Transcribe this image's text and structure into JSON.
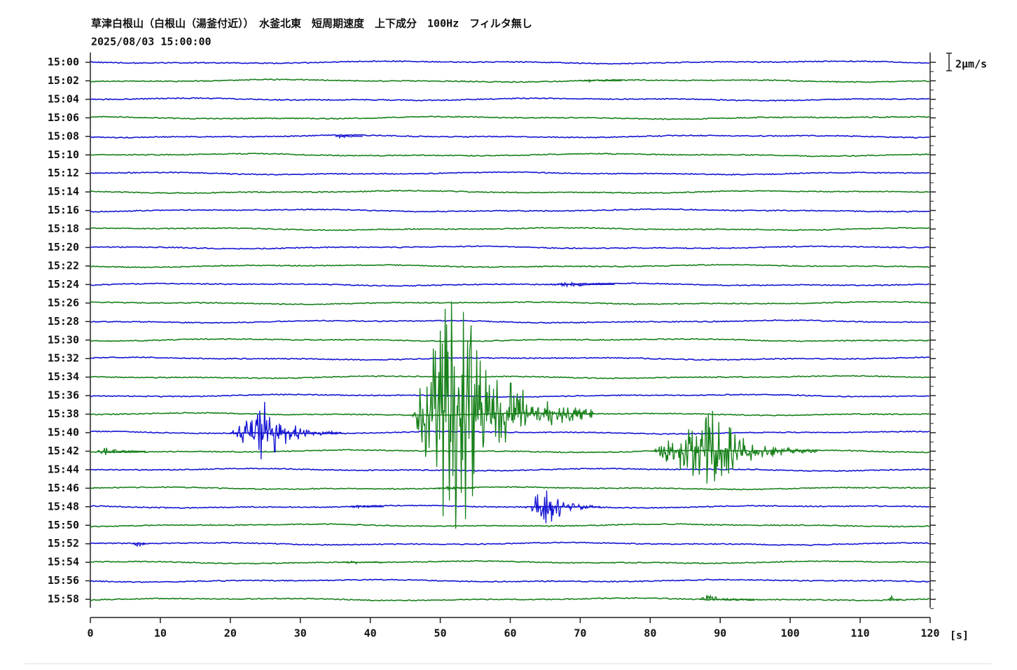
{
  "chart_data": {
    "type": "seismogram",
    "title": "草津白根山（白根山（湯釜付近））　水釜北東　短周期速度　上下成分　100Hz　フィルタ無し",
    "subtitle": "2025/08/03 15:00:00",
    "rows": [
      "15:00",
      "15:02",
      "15:04",
      "15:06",
      "15:08",
      "15:10",
      "15:12",
      "15:14",
      "15:16",
      "15:18",
      "15:20",
      "15:22",
      "15:24",
      "15:26",
      "15:28",
      "15:30",
      "15:32",
      "15:34",
      "15:36",
      "15:38",
      "15:40",
      "15:42",
      "15:44",
      "15:46",
      "15:48",
      "15:50",
      "15:52",
      "15:54",
      "15:56",
      "15:58"
    ],
    "colors": [
      "#1414d2",
      "#17801a"
    ],
    "xlim": [
      0,
      120
    ],
    "xticks": [
      0,
      10,
      20,
      30,
      40,
      50,
      60,
      70,
      80,
      90,
      100,
      110,
      120
    ],
    "xlabel": "[s]",
    "scale": {
      "value": 2,
      "label": "2μm/s"
    },
    "events": [
      {
        "row": 1,
        "start": 70,
        "peak": 72,
        "end": 76,
        "amplitude": 0.2
      },
      {
        "row": 4,
        "start": 35,
        "peak": 36,
        "end": 39,
        "amplitude": 0.3
      },
      {
        "row": 12,
        "start": 65,
        "peak": 69,
        "end": 75,
        "amplitude": 0.3
      },
      {
        "row": 19,
        "start": 46,
        "peak": 52,
        "end": 72,
        "amplitude": 17
      },
      {
        "row": 20,
        "start": 20,
        "peak": 25,
        "end": 36,
        "amplitude": 3.6
      },
      {
        "row": 21,
        "start": 1,
        "peak": 2,
        "end": 8,
        "amplitude": 0.5
      },
      {
        "row": 21,
        "start": 80,
        "peak": 89,
        "end": 104,
        "amplitude": 4.8
      },
      {
        "row": 23,
        "start": 49,
        "peak": 51,
        "end": 55,
        "amplitude": 0.4
      },
      {
        "row": 24,
        "start": 37,
        "peak": 38,
        "end": 42,
        "amplitude": 0.2
      },
      {
        "row": 24,
        "start": 62,
        "peak": 65,
        "end": 73,
        "amplitude": 2.9
      },
      {
        "row": 26,
        "start": 6,
        "peak": 7,
        "end": 8.5,
        "amplitude": 0.4
      },
      {
        "row": 27,
        "start": 36,
        "peak": 38,
        "end": 42,
        "amplitude": 0.2
      },
      {
        "row": 29,
        "start": 87,
        "peak": 88,
        "end": 95,
        "amplitude": 0.6
      },
      {
        "row": 29,
        "start": 114,
        "peak": 114.5,
        "end": 116,
        "amplitude": 0.4
      }
    ]
  }
}
